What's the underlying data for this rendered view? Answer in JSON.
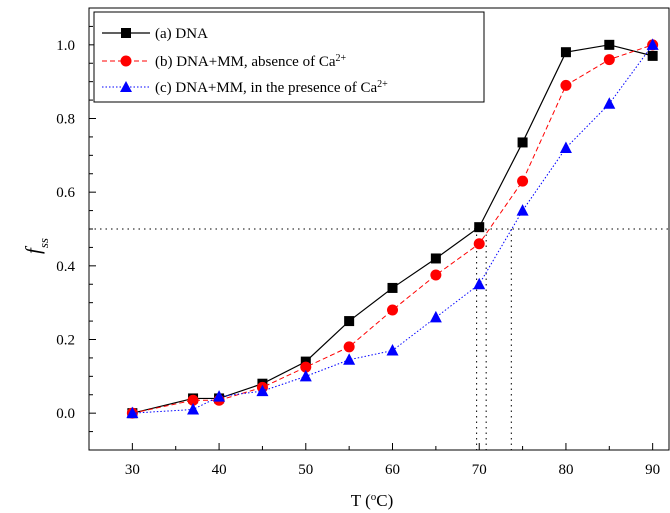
{
  "chart_data": {
    "type": "line",
    "xlabel": {
      "main": "T (",
      "sup": "o",
      "rest": "C)"
    },
    "ylabel": {
      "main": "f",
      "sub": "ss"
    },
    "xlim": [
      25,
      92
    ],
    "ylim": [
      -0.1,
      1.1
    ],
    "x_ticks": [
      30,
      40,
      50,
      60,
      70,
      80,
      90
    ],
    "y_ticks": [
      0.0,
      0.2,
      0.4,
      0.6,
      0.8,
      1.0
    ],
    "x_tick_labels": [
      "30",
      "40",
      "50",
      "60",
      "70",
      "80",
      "90"
    ],
    "y_tick_labels": [
      "0.0",
      "0.2",
      "0.4",
      "0.6",
      "0.8",
      "1.0"
    ],
    "legend_position": "top-left",
    "reference_lines": {
      "y": 0.5,
      "x": [
        69.7,
        70.8,
        73.7
      ]
    },
    "series": [
      {
        "name": "(a) DNA",
        "name_main": "(a) DNA",
        "name_sup": "",
        "color": "#000000",
        "marker": "square",
        "line_style": "solid",
        "x": [
          30,
          37,
          40,
          45,
          50,
          55,
          60,
          65,
          70,
          75,
          80,
          85,
          90
        ],
        "y": [
          0.0,
          0.04,
          0.04,
          0.08,
          0.14,
          0.25,
          0.34,
          0.42,
          0.505,
          0.735,
          0.98,
          1.0,
          0.97
        ]
      },
      {
        "name": "(b) DNA+MM, absence of Ca2+",
        "name_main": "(b) DNA+MM, absence of Ca",
        "name_sup": "2+",
        "color": "#ff0000",
        "marker": "circle",
        "line_style": "dashed",
        "x": [
          30,
          37,
          40,
          45,
          50,
          55,
          60,
          65,
          70,
          75,
          80,
          85,
          90
        ],
        "y": [
          0.0,
          0.035,
          0.035,
          0.07,
          0.125,
          0.18,
          0.28,
          0.375,
          0.46,
          0.63,
          0.89,
          0.96,
          1.0
        ]
      },
      {
        "name": "(c) DNA+MM, in the presence of Ca2+",
        "name_main": "(c) DNA+MM, in the presence of Ca",
        "name_sup": "2+",
        "color": "#0000ff",
        "marker": "triangle",
        "line_style": "dotted",
        "x": [
          30,
          37,
          40,
          45,
          50,
          55,
          60,
          65,
          70,
          75,
          80,
          85,
          90
        ],
        "y": [
          0.0,
          0.01,
          0.045,
          0.06,
          0.1,
          0.145,
          0.17,
          0.26,
          0.35,
          0.55,
          0.72,
          0.84,
          1.0
        ]
      }
    ]
  }
}
